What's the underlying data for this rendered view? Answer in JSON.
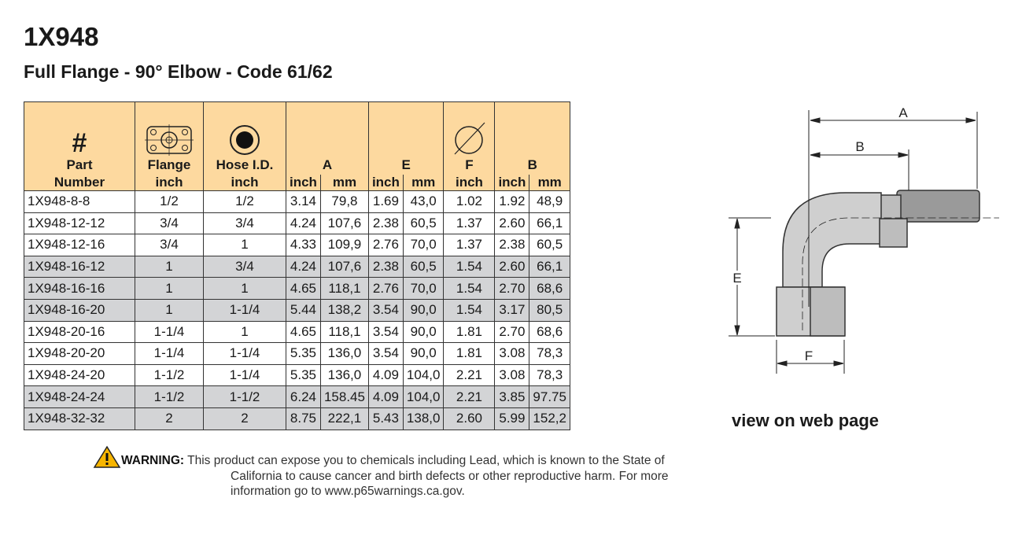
{
  "header": {
    "title": "1X948",
    "subtitle": "Full Flange - 90° Elbow - Code 61/62"
  },
  "table": {
    "symbol": "#",
    "labels": [
      "Part",
      "Flange",
      "Hose I.D.",
      "A",
      "E",
      "F",
      "B"
    ],
    "units": [
      "Number",
      "inch",
      "inch",
      "inch",
      "mm",
      "inch",
      "mm",
      "inch",
      "inch",
      "mm"
    ],
    "rows": [
      [
        "1X948-8-8",
        "1/2",
        "1/2",
        "3.14",
        "79,8",
        "1.69",
        "43,0",
        "1.02",
        "1.92",
        "48,9"
      ],
      [
        "1X948-12-12",
        "3/4",
        "3/4",
        "4.24",
        "107,6",
        "2.38",
        "60,5",
        "1.37",
        "2.60",
        "66,1"
      ],
      [
        "1X948-12-16",
        "3/4",
        "1",
        "4.33",
        "109,9",
        "2.76",
        "70,0",
        "1.37",
        "2.38",
        "60,5"
      ],
      [
        "1X948-16-12",
        "1",
        "3/4",
        "4.24",
        "107,6",
        "2.38",
        "60,5",
        "1.54",
        "2.60",
        "66,1"
      ],
      [
        "1X948-16-16",
        "1",
        "1",
        "4.65",
        "118,1",
        "2.76",
        "70,0",
        "1.54",
        "2.70",
        "68,6"
      ],
      [
        "1X948-16-20",
        "1",
        "1-1/4",
        "5.44",
        "138,2",
        "3.54",
        "90,0",
        "1.54",
        "3.17",
        "80,5"
      ],
      [
        "1X948-20-16",
        "1-1/4",
        "1",
        "4.65",
        "118,1",
        "3.54",
        "90,0",
        "1.81",
        "2.70",
        "68,6"
      ],
      [
        "1X948-20-20",
        "1-1/4",
        "1-1/4",
        "5.35",
        "136,0",
        "3.54",
        "90,0",
        "1.81",
        "3.08",
        "78,3"
      ],
      [
        "1X948-24-20",
        "1-1/2",
        "1-1/4",
        "5.35",
        "136,0",
        "4.09",
        "104,0",
        "2.21",
        "3.08",
        "78,3"
      ],
      [
        "1X948-24-24",
        "1-1/2",
        "1-1/2",
        "6.24",
        "158.45",
        "4.09",
        "104,0",
        "2.21",
        "3.85",
        "97.75"
      ],
      [
        "1X948-32-32",
        "2",
        "2",
        "8.75",
        "222,1",
        "5.43",
        "138,0",
        "2.60",
        "5.99",
        "152,2"
      ]
    ]
  },
  "warning": {
    "label": "WARNING:",
    "text": "This product can expose you to chemicals including Lead, which is known to the State of California to cause cancer and birth defects or other reproductive harm.  For more information go to www.p65warnings.ca.gov."
  },
  "diagram": {
    "labels": [
      "A",
      "B",
      "E",
      "F"
    ],
    "link": "view on web page"
  }
}
